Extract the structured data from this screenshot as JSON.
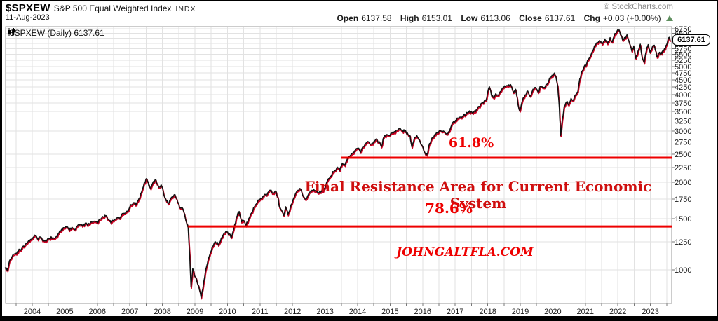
{
  "header": {
    "symbol": "$SPXEW",
    "name": "S&P 500 Equal Weighted Index",
    "exchange": "INDX",
    "date": "11-Aug-2023",
    "copyright": "© StockCharts.com",
    "quote": {
      "open_label": "Open",
      "open": "6137.58",
      "high_label": "High",
      "high": "6153.01",
      "low_label": "Low",
      "low": "6113.06",
      "close_label": "Close",
      "close": "6137.61",
      "chg_label": "Chg",
      "chg": "+0.03 (+0.00%)"
    }
  },
  "chart": {
    "legend": "$SPXEW (Daily) 6137.61",
    "price_tag": "6137.61",
    "annotations": {
      "fib_618": "61.8%",
      "fib_786": "78.6%",
      "resistance": "Final Resistance Area for Current Economic System",
      "watermark": "JOHNGALTFLA.COM"
    }
  },
  "colors": {
    "line_black": "#111111",
    "line_red_shadow": "#cc0022",
    "fib_red": "#ee0000",
    "resistance_red": "#cf0f0f",
    "grid": "#e2e2e2",
    "plot_border": "#9a9a9a",
    "axis_text": "#1a1a1a",
    "chg_up_green": "#5f8f5f"
  },
  "chart_data": {
    "type": "line",
    "title": "$SPXEW (Daily) — S&P 500 Equal Weighted Index",
    "y_scale": "log",
    "xlim": [
      2003.17,
      2023.63
    ],
    "ylim": [
      766,
      6915
    ],
    "grid": true,
    "x_ticks": [
      2004,
      2005,
      2006,
      2007,
      2008,
      2009,
      2010,
      2011,
      2012,
      2013,
      2014,
      2015,
      2016,
      2017,
      2018,
      2019,
      2020,
      2021,
      2022,
      2023
    ],
    "y_ticks": [
      1000,
      1250,
      1500,
      1750,
      2000,
      2250,
      2500,
      2750,
      3000,
      3250,
      3500,
      3750,
      4000,
      4250,
      4500,
      4750,
      5000,
      5250,
      5500,
      5750,
      6000,
      6250,
      6500,
      6750
    ],
    "last_close": 6137.61,
    "hlines": [
      {
        "label": "61.8%",
        "value": 2430,
        "x_start": 2013.5
      },
      {
        "label": "78.6%",
        "value": 1410,
        "x_start": 2008.79
      }
    ],
    "points": [
      [
        2003.17,
        1020
      ],
      [
        2003.24,
        995
      ],
      [
        2003.3,
        1075
      ],
      [
        2003.38,
        1110
      ],
      [
        2003.46,
        1135
      ],
      [
        2003.54,
        1155
      ],
      [
        2003.62,
        1175
      ],
      [
        2003.7,
        1200
      ],
      [
        2003.78,
        1220
      ],
      [
        2003.86,
        1245
      ],
      [
        2003.94,
        1270
      ],
      [
        2004.02,
        1290
      ],
      [
        2004.1,
        1312
      ],
      [
        2004.18,
        1270
      ],
      [
        2004.26,
        1296
      ],
      [
        2004.34,
        1268
      ],
      [
        2004.42,
        1252
      ],
      [
        2004.5,
        1278
      ],
      [
        2004.58,
        1300
      ],
      [
        2004.66,
        1285
      ],
      [
        2004.74,
        1302
      ],
      [
        2004.82,
        1340
      ],
      [
        2004.9,
        1378
      ],
      [
        2004.98,
        1395
      ],
      [
        2005.06,
        1402
      ],
      [
        2005.14,
        1368
      ],
      [
        2005.22,
        1402
      ],
      [
        2005.3,
        1376
      ],
      [
        2005.38,
        1412
      ],
      [
        2005.46,
        1428
      ],
      [
        2005.54,
        1415
      ],
      [
        2005.62,
        1442
      ],
      [
        2005.7,
        1421
      ],
      [
        2005.78,
        1448
      ],
      [
        2005.86,
        1459
      ],
      [
        2005.94,
        1468
      ],
      [
        2006.02,
        1452
      ],
      [
        2006.1,
        1496
      ],
      [
        2006.18,
        1521
      ],
      [
        2006.26,
        1532
      ],
      [
        2006.34,
        1492
      ],
      [
        2006.42,
        1448
      ],
      [
        2006.5,
        1475
      ],
      [
        2006.58,
        1500
      ],
      [
        2006.66,
        1512
      ],
      [
        2006.74,
        1540
      ],
      [
        2006.82,
        1565
      ],
      [
        2006.9,
        1590
      ],
      [
        2006.98,
        1628
      ],
      [
        2007.06,
        1672
      ],
      [
        2007.14,
        1702
      ],
      [
        2007.2,
        1672
      ],
      [
        2007.28,
        1758
      ],
      [
        2007.36,
        1852
      ],
      [
        2007.44,
        1990
      ],
      [
        2007.52,
        2062
      ],
      [
        2007.58,
        1948
      ],
      [
        2007.64,
        1902
      ],
      [
        2007.72,
        2012
      ],
      [
        2007.8,
        2043
      ],
      [
        2007.88,
        1926
      ],
      [
        2007.96,
        1962
      ],
      [
        2008.04,
        1822
      ],
      [
        2008.12,
        1726
      ],
      [
        2008.2,
        1698
      ],
      [
        2008.28,
        1778
      ],
      [
        2008.36,
        1812
      ],
      [
        2008.44,
        1760
      ],
      [
        2008.52,
        1648
      ],
      [
        2008.6,
        1642
      ],
      [
        2008.68,
        1556
      ],
      [
        2008.74,
        1458
      ],
      [
        2008.79,
        1398
      ],
      [
        2008.84,
        1118
      ],
      [
        2008.88,
        872
      ],
      [
        2008.93,
        1008
      ],
      [
        2008.98,
        962
      ],
      [
        2009.04,
        938
      ],
      [
        2009.11,
        886
      ],
      [
        2009.19,
        802
      ],
      [
        2009.27,
        908
      ],
      [
        2009.35,
        1018
      ],
      [
        2009.44,
        1112
      ],
      [
        2009.53,
        1198
      ],
      [
        2009.62,
        1252
      ],
      [
        2009.72,
        1218
      ],
      [
        2009.81,
        1288
      ],
      [
        2009.9,
        1338
      ],
      [
        2009.98,
        1352
      ],
      [
        2010.06,
        1330
      ],
      [
        2010.13,
        1298
      ],
      [
        2010.22,
        1428
      ],
      [
        2010.3,
        1532
      ],
      [
        2010.36,
        1588
      ],
      [
        2010.43,
        1462
      ],
      [
        2010.5,
        1478
      ],
      [
        2010.57,
        1418
      ],
      [
        2010.65,
        1498
      ],
      [
        2010.74,
        1568
      ],
      [
        2010.83,
        1648
      ],
      [
        2010.92,
        1712
      ],
      [
        2011.0,
        1748
      ],
      [
        2011.08,
        1782
      ],
      [
        2011.16,
        1818
      ],
      [
        2011.24,
        1842
      ],
      [
        2011.32,
        1878
      ],
      [
        2011.4,
        1838
      ],
      [
        2011.48,
        1868
      ],
      [
        2011.54,
        1795
      ],
      [
        2011.6,
        1642
      ],
      [
        2011.66,
        1608
      ],
      [
        2011.73,
        1538
      ],
      [
        2011.79,
        1648
      ],
      [
        2011.86,
        1548
      ],
      [
        2011.93,
        1638
      ],
      [
        2012.01,
        1738
      ],
      [
        2012.09,
        1828
      ],
      [
        2012.17,
        1878
      ],
      [
        2012.25,
        1898
      ],
      [
        2012.33,
        1788
      ],
      [
        2012.41,
        1748
      ],
      [
        2012.49,
        1818
      ],
      [
        2012.57,
        1858
      ],
      [
        2012.65,
        1896
      ],
      [
        2012.73,
        1868
      ],
      [
        2012.81,
        1842
      ],
      [
        2012.89,
        1862
      ],
      [
        2012.97,
        1902
      ],
      [
        2013.05,
        2002
      ],
      [
        2013.13,
        2062
      ],
      [
        2013.21,
        2128
      ],
      [
        2013.29,
        2198
      ],
      [
        2013.37,
        2258
      ],
      [
        2013.45,
        2198
      ],
      [
        2013.53,
        2328
      ],
      [
        2013.61,
        2288
      ],
      [
        2013.69,
        2418
      ],
      [
        2013.77,
        2468
      ],
      [
        2013.85,
        2522
      ],
      [
        2013.93,
        2578
      ],
      [
        2014.01,
        2622
      ],
      [
        2014.09,
        2538
      ],
      [
        2014.17,
        2658
      ],
      [
        2014.25,
        2718
      ],
      [
        2014.33,
        2758
      ],
      [
        2014.41,
        2700
      ],
      [
        2014.49,
        2758
      ],
      [
        2014.57,
        2818
      ],
      [
        2014.65,
        2758
      ],
      [
        2014.73,
        2652
      ],
      [
        2014.81,
        2868
      ],
      [
        2014.89,
        2918
      ],
      [
        2014.97,
        2898
      ],
      [
        2015.05,
        2948
      ],
      [
        2015.13,
        2988
      ],
      [
        2015.21,
        3022
      ],
      [
        2015.29,
        3058
      ],
      [
        2015.37,
        3022
      ],
      [
        2015.45,
        2992
      ],
      [
        2015.53,
        2958
      ],
      [
        2015.61,
        2902
      ],
      [
        2015.67,
        2642
      ],
      [
        2015.74,
        2822
      ],
      [
        2015.82,
        2898
      ],
      [
        2015.9,
        2808
      ],
      [
        2015.98,
        2682
      ],
      [
        2016.06,
        2542
      ],
      [
        2016.13,
        2488
      ],
      [
        2016.21,
        2718
      ],
      [
        2016.29,
        2848
      ],
      [
        2016.37,
        2918
      ],
      [
        2016.45,
        2958
      ],
      [
        2016.53,
        3018
      ],
      [
        2016.61,
        2988
      ],
      [
        2016.69,
        2958
      ],
      [
        2016.77,
        2938
      ],
      [
        2016.85,
        3058
      ],
      [
        2016.93,
        3218
      ],
      [
        2017.01,
        3268
      ],
      [
        2017.09,
        3318
      ],
      [
        2017.17,
        3352
      ],
      [
        2017.25,
        3388
      ],
      [
        2017.33,
        3428
      ],
      [
        2017.41,
        3478
      ],
      [
        2017.49,
        3508
      ],
      [
        2017.57,
        3488
      ],
      [
        2017.65,
        3558
      ],
      [
        2017.73,
        3648
      ],
      [
        2017.81,
        3738
      ],
      [
        2017.89,
        3802
      ],
      [
        2017.97,
        3902
      ],
      [
        2018.05,
        4268
      ],
      [
        2018.11,
        4002
      ],
      [
        2018.17,
        3918
      ],
      [
        2018.25,
        4038
      ],
      [
        2018.33,
        3978
      ],
      [
        2018.41,
        4118
      ],
      [
        2018.49,
        4238
      ],
      [
        2018.57,
        4298
      ],
      [
        2018.65,
        4328
      ],
      [
        2018.73,
        4278
      ],
      [
        2018.79,
        4078
      ],
      [
        2018.86,
        4178
      ],
      [
        2018.93,
        3698
      ],
      [
        2018.99,
        3522
      ],
      [
        2019.07,
        3838
      ],
      [
        2019.15,
        3998
      ],
      [
        2019.23,
        4118
      ],
      [
        2019.31,
        3958
      ],
      [
        2019.39,
        4178
      ],
      [
        2019.47,
        4238
      ],
      [
        2019.55,
        4078
      ],
      [
        2019.63,
        4278
      ],
      [
        2019.71,
        4238
      ],
      [
        2019.79,
        4338
      ],
      [
        2019.87,
        4448
      ],
      [
        2019.95,
        4598
      ],
      [
        2020.03,
        4718
      ],
      [
        2020.09,
        4648
      ],
      [
        2020.15,
        4298
      ],
      [
        2020.2,
        3598
      ],
      [
        2020.24,
        2898
      ],
      [
        2020.29,
        3298
      ],
      [
        2020.35,
        3648
      ],
      [
        2020.42,
        3778
      ],
      [
        2020.49,
        3698
      ],
      [
        2020.56,
        3888
      ],
      [
        2020.63,
        3828
      ],
      [
        2020.7,
        3998
      ],
      [
        2020.77,
        4098
      ],
      [
        2020.83,
        4548
      ],
      [
        2020.89,
        4798
      ],
      [
        2020.96,
        4998
      ],
      [
        2021.04,
        5118
      ],
      [
        2021.12,
        5348
      ],
      [
        2021.2,
        5598
      ],
      [
        2021.28,
        5898
      ],
      [
        2021.36,
        6048
      ],
      [
        2021.44,
        6148
      ],
      [
        2021.52,
        5978
      ],
      [
        2021.6,
        6218
      ],
      [
        2021.68,
        5998
      ],
      [
        2021.76,
        6288
      ],
      [
        2021.83,
        6078
      ],
      [
        2021.91,
        6498
      ],
      [
        2021.98,
        6648
      ],
      [
        2022.04,
        6678
      ],
      [
        2022.1,
        6418
      ],
      [
        2022.16,
        6168
      ],
      [
        2022.22,
        6298
      ],
      [
        2022.28,
        6428
      ],
      [
        2022.36,
        5998
      ],
      [
        2022.43,
        5638
      ],
      [
        2022.49,
        5888
      ],
      [
        2022.55,
        5338
      ],
      [
        2022.62,
        5658
      ],
      [
        2022.69,
        5968
      ],
      [
        2022.75,
        5348
      ],
      [
        2022.81,
        5148
      ],
      [
        2022.87,
        5648
      ],
      [
        2022.93,
        5948
      ],
      [
        2022.99,
        5598
      ],
      [
        2023.06,
        5848
      ],
      [
        2023.12,
        5918
      ],
      [
        2023.2,
        5398
      ],
      [
        2023.28,
        5598
      ],
      [
        2023.35,
        5528
      ],
      [
        2023.43,
        5758
      ],
      [
        2023.5,
        5948
      ],
      [
        2023.56,
        6278
      ],
      [
        2023.61,
        6137.61
      ]
    ]
  }
}
